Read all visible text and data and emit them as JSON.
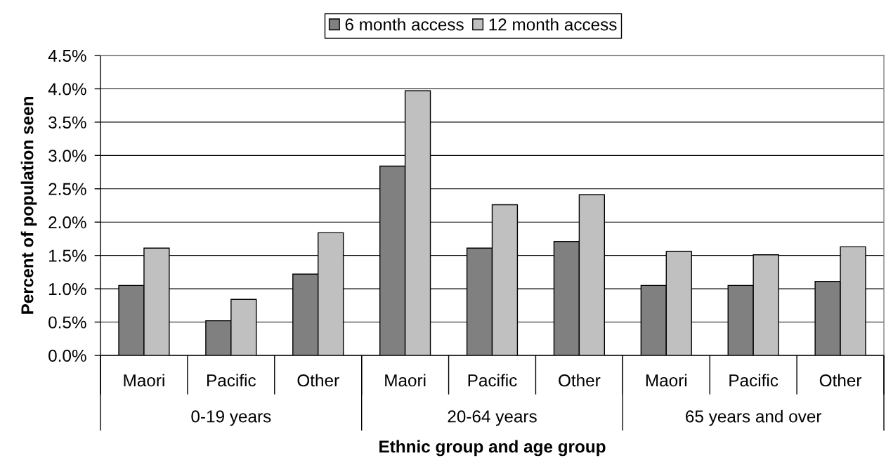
{
  "chart_data": {
    "type": "bar",
    "xlabel": "Ethnic group and age group",
    "ylabel": "Percent of population seen",
    "categories": [
      "Maori",
      "Pacific",
      "Other",
      "Maori",
      "Pacific",
      "Other",
      "Maori",
      "Pacific",
      "Other"
    ],
    "series": [
      {
        "name": "6 month access",
        "color": "#808080",
        "values": [
          1.05,
          0.52,
          1.22,
          2.84,
          1.61,
          1.71,
          1.05,
          1.05,
          1.11
        ]
      },
      {
        "name": "12 month access",
        "color": "#c0c0c0",
        "values": [
          1.61,
          0.84,
          1.84,
          3.97,
          2.26,
          2.41,
          1.56,
          1.51,
          1.63
        ]
      }
    ],
    "ylim": [
      0,
      4.5
    ],
    "yticks": [
      {
        "value": 0,
        "label": "0.0%"
      },
      {
        "value": 0.5,
        "label": "0.5%"
      },
      {
        "value": 1,
        "label": "1.0%"
      },
      {
        "value": 1.5,
        "label": "1.5%"
      },
      {
        "value": 2,
        "label": "2.0%"
      },
      {
        "value": 2.5,
        "label": "2.5%"
      },
      {
        "value": 3,
        "label": "3.0%"
      },
      {
        "value": 3.5,
        "label": "3.5%"
      },
      {
        "value": 4,
        "label": "4.0%"
      },
      {
        "value": 4.5,
        "label": "4.5%"
      }
    ],
    "grid": "y",
    "legend": "top",
    "annotations": [
      "0-19 years",
      "20-64 years",
      "65 years and over"
    ]
  }
}
